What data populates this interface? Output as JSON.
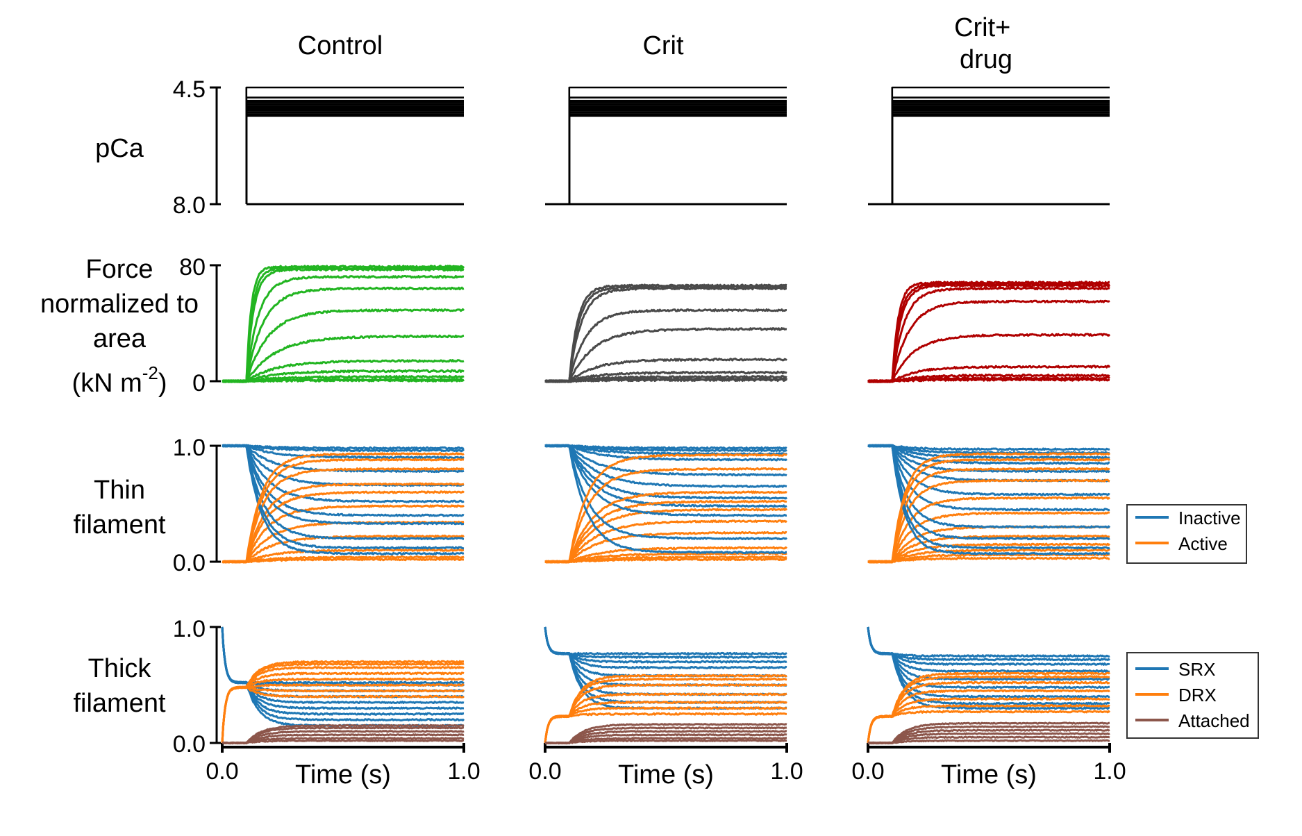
{
  "colors": {
    "axis": "#000000",
    "control_force": "#22b521",
    "crit_force": "#4a4a4a",
    "drug_force": "#b00000",
    "inactive": "#1f77b4",
    "active": "#ff7f0e",
    "srx": "#1f77b4",
    "drx": "#ff7f0e",
    "attached": "#8c564b"
  },
  "columns": [
    {
      "key": "control",
      "title": "Control",
      "force_color_key": "control_force"
    },
    {
      "key": "crit",
      "title": "Crit",
      "force_color_key": "crit_force"
    },
    {
      "key": "drug",
      "title": "Crit+\ndrug",
      "force_color_key": "drug_force"
    }
  ],
  "rows": [
    {
      "key": "pca",
      "label": "pCa",
      "yticks": [
        "4.5",
        "8.0"
      ]
    },
    {
      "key": "force",
      "label": "Force\nnormalized to\narea\n(kN m-2)",
      "yticks": [
        "80",
        "0"
      ]
    },
    {
      "key": "thin",
      "label": "Thin\nfilament",
      "yticks": [
        "1.0",
        "0.0"
      ]
    },
    {
      "key": "thick",
      "label": "Thick\nfilament",
      "yticks": [
        "1.0",
        "0.0"
      ]
    }
  ],
  "xaxis": {
    "label": "Time (s)",
    "ticks": [
      "0.0",
      "1.0"
    ]
  },
  "legends": {
    "thin": [
      {
        "label": "Inactive",
        "color_key": "inactive"
      },
      {
        "label": "Active",
        "color_key": "active"
      }
    ],
    "thick": [
      {
        "label": "SRX",
        "color_key": "srx"
      },
      {
        "label": "DRX",
        "color_key": "drx"
      },
      {
        "label": "Attached",
        "color_key": "attached"
      }
    ]
  },
  "chart_data": [
    {
      "type": "line",
      "panel": "pCa",
      "x_range": [
        0.0,
        1.0
      ],
      "ylim": [
        8.0,
        4.5
      ],
      "y_inverted": true,
      "step_time": 0.1,
      "series": [
        {
          "condition": "Control",
          "baseline": 8.0,
          "levels": [
            4.5,
            4.8,
            4.9,
            4.95,
            5.0,
            5.05,
            5.1,
            5.15,
            5.2,
            5.25,
            5.3,
            5.35
          ]
        },
        {
          "condition": "Crit",
          "baseline": 8.0,
          "levels": [
            4.5,
            4.8,
            4.9,
            4.95,
            5.0,
            5.05,
            5.1,
            5.15,
            5.2,
            5.25,
            5.3,
            5.35
          ]
        },
        {
          "condition": "Crit+drug",
          "baseline": 8.0,
          "levels": [
            4.5,
            4.8,
            4.9,
            4.95,
            5.0,
            5.05,
            5.1,
            5.15,
            5.2,
            5.25,
            5.3,
            5.35
          ]
        }
      ]
    },
    {
      "type": "line",
      "panel": "Force",
      "x_range": [
        0.0,
        1.0
      ],
      "ylim": [
        0,
        80
      ],
      "step_time": 0.1,
      "series": [
        {
          "condition": "Control",
          "steady_state": [
            79,
            78,
            77,
            72,
            64,
            49,
            31,
            14,
            7,
            3,
            1,
            0.5
          ],
          "tau": [
            0.02,
            0.025,
            0.03,
            0.05,
            0.07,
            0.09,
            0.12,
            0.12,
            0.12,
            0.12,
            0.12,
            0.12
          ]
        },
        {
          "condition": "Crit",
          "steady_state": [
            66,
            65,
            64,
            49,
            36,
            15,
            6,
            3,
            1.5,
            0.8
          ],
          "tau": [
            0.035,
            0.04,
            0.05,
            0.07,
            0.1,
            0.11,
            0.11,
            0.11,
            0.11,
            0.11
          ]
        },
        {
          "condition": "Crit+drug",
          "steady_state": [
            68,
            67,
            66,
            64,
            55,
            32,
            10,
            4,
            2,
            1
          ],
          "tau": [
            0.025,
            0.03,
            0.035,
            0.05,
            0.07,
            0.09,
            0.1,
            0.1,
            0.1,
            0.1
          ]
        }
      ]
    },
    {
      "type": "line",
      "panel": "Thin filament",
      "x_range": [
        0.0,
        1.0
      ],
      "ylim": [
        0.0,
        1.0
      ],
      "step_time": 0.1,
      "series": [
        {
          "condition": "Control",
          "name": "Active",
          "steady_state": [
            0.02,
            0.04,
            0.1,
            0.22,
            0.34,
            0.48,
            0.6,
            0.67,
            0.8,
            0.88,
            0.93
          ],
          "tau": 0.06
        },
        {
          "condition": "Crit",
          "name": "Active",
          "steady_state": [
            0.02,
            0.04,
            0.07,
            0.12,
            0.25,
            0.35,
            0.45,
            0.52,
            0.6,
            0.8,
            0.92
          ],
          "tau": 0.07
        },
        {
          "condition": "Crit+drug",
          "name": "Active",
          "steady_state": [
            0.03,
            0.06,
            0.1,
            0.15,
            0.22,
            0.3,
            0.42,
            0.55,
            0.7,
            0.8,
            0.88,
            0.93
          ],
          "tau": 0.05
        }
      ]
    },
    {
      "type": "line",
      "panel": "Thick filament",
      "x_range": [
        0.0,
        1.0
      ],
      "ylim": [
        0.0,
        1.0
      ],
      "step_time": 0.1,
      "series": [
        {
          "condition": "Control",
          "name": "SRX",
          "initial": 1.0,
          "pre_step": 0.52,
          "steady_state": [
            0.52,
            0.5,
            0.45,
            0.4,
            0.35,
            0.3,
            0.25,
            0.2,
            0.15
          ]
        },
        {
          "condition": "Control",
          "name": "DRX",
          "initial": 0.0,
          "pre_step": 0.48,
          "steady_state": [
            0.7,
            0.68,
            0.65,
            0.6,
            0.55,
            0.5,
            0.45,
            0.4
          ]
        },
        {
          "condition": "Control",
          "name": "Attached",
          "steady_state": [
            0.15,
            0.13,
            0.1,
            0.07,
            0.04,
            0.02
          ]
        },
        {
          "condition": "Crit",
          "name": "SRX",
          "initial": 1.0,
          "pre_step": 0.77,
          "steady_state": [
            0.77,
            0.74,
            0.7,
            0.65,
            0.58,
            0.5,
            0.42,
            0.35,
            0.3
          ]
        },
        {
          "condition": "Crit",
          "name": "DRX",
          "initial": 0.0,
          "pre_step": 0.23,
          "steady_state": [
            0.58,
            0.55,
            0.5,
            0.42,
            0.35,
            0.3,
            0.25
          ]
        },
        {
          "condition": "Crit",
          "name": "Attached",
          "steady_state": [
            0.16,
            0.13,
            0.1,
            0.07,
            0.04,
            0.02
          ]
        },
        {
          "condition": "Crit+drug",
          "name": "SRX",
          "initial": 1.0,
          "pre_step": 0.77,
          "steady_state": [
            0.75,
            0.72,
            0.68,
            0.62,
            0.55,
            0.48,
            0.4,
            0.34,
            0.3
          ]
        },
        {
          "condition": "Crit+drug",
          "name": "DRX",
          "initial": 0.0,
          "pre_step": 0.23,
          "steady_state": [
            0.6,
            0.57,
            0.52,
            0.45,
            0.38,
            0.32,
            0.27
          ]
        },
        {
          "condition": "Crit+drug",
          "name": "Attached",
          "steady_state": [
            0.17,
            0.14,
            0.11,
            0.08,
            0.05,
            0.02
          ]
        }
      ]
    }
  ]
}
